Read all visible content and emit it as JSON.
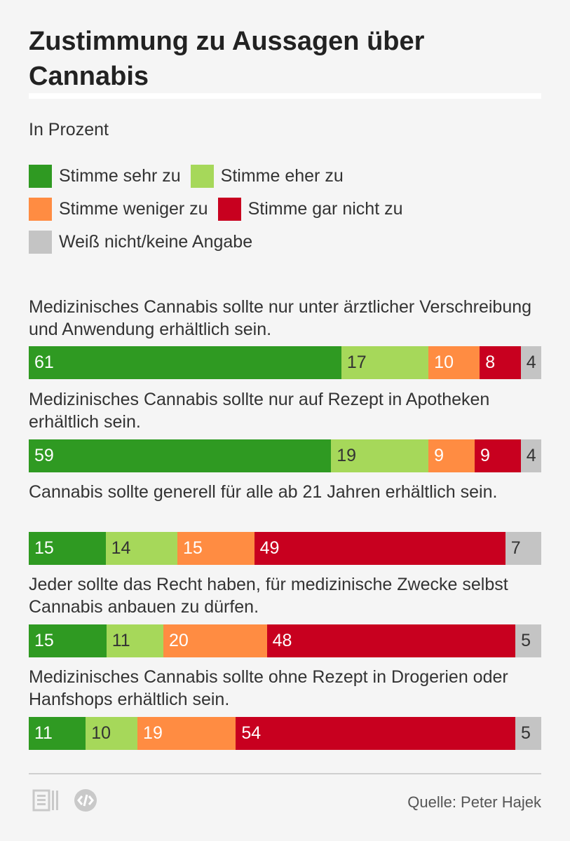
{
  "header": {
    "title": "Zustimmung zu Aussagen über Cannabis",
    "subtitle": "In Prozent"
  },
  "colors": {
    "stimme_sehr_zu": "#2f9a22",
    "stimme_eher_zu": "#a6d85a",
    "stimme_weniger_zu": "#ff8c42",
    "stimme_gar_nicht_zu": "#c8001f",
    "weiss_nicht": "#c4c4c4"
  },
  "chart_data": {
    "type": "bar",
    "stacked": true,
    "orientation": "horizontal",
    "unit": "In Prozent",
    "legend_position": "top",
    "categories": [
      "Medizinisches Cannabis sollte nur unter ärztlicher Verschreibung und Anwendung erhältlich sein.",
      "Medizinisches Cannabis sollte nur auf Rezept in Apotheken erhältlich sein.",
      "Cannabis sollte generell für alle ab 21 Jahren erhältlich sein.",
      "Jeder sollte das Recht haben, für medizinische Zwecke selbst Cannabis anbauen zu dürfen.",
      "Medizinisches Cannabis sollte ohne Rezept in Drogerien oder Hanfshops erhältlich sein."
    ],
    "series": [
      {
        "name": "Stimme sehr zu",
        "color": "#2f9a22",
        "label_color": "#ffffff",
        "values": [
          61,
          59,
          15,
          15,
          11
        ]
      },
      {
        "name": "Stimme eher zu",
        "color": "#a6d85a",
        "label_color": "#333333",
        "values": [
          17,
          19,
          14,
          11,
          10
        ]
      },
      {
        "name": "Stimme weniger zu",
        "color": "#ff8c42",
        "label_color": "#ffffff",
        "values": [
          10,
          9,
          15,
          20,
          19
        ]
      },
      {
        "name": "Stimme gar nicht zu",
        "color": "#c8001f",
        "label_color": "#ffffff",
        "values": [
          8,
          9,
          49,
          48,
          54
        ]
      },
      {
        "name": "Weiß nicht/keine Angabe",
        "color": "#c4c4c4",
        "label_color": "#333333",
        "values": [
          4,
          4,
          7,
          5,
          5
        ]
      }
    ]
  },
  "footer": {
    "source": "Quelle: Peter Hajek",
    "icons": [
      "document-icon",
      "embed-icon"
    ]
  }
}
